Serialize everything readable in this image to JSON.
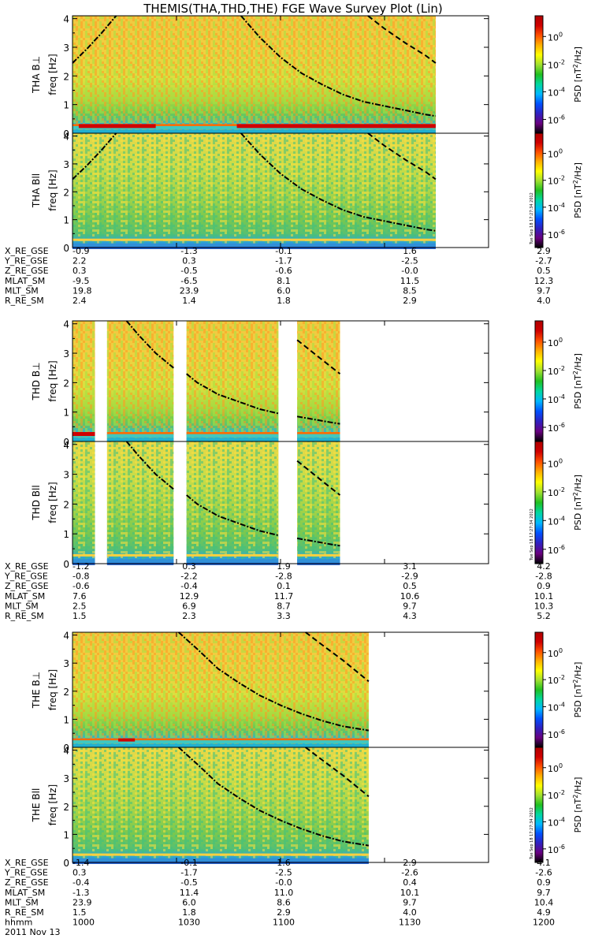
{
  "chart_data": {
    "type": "heatmap",
    "title": "THEMIS(THA,THD,THE) FGE Wave Survey Plot (Lin)",
    "stamp": "Tue Sep 18 17:27:34 2012",
    "freq_ticks": [
      0,
      1,
      2,
      3,
      4
    ],
    "ylim": [
      0,
      4.1
    ],
    "colorbar": {
      "label_parts": [
        "PSD [nT",
        "2",
        "/Hz]"
      ],
      "ticks": [
        {
          "base": "10",
          "exp": "0",
          "value": 0
        },
        {
          "base": "10",
          "exp": "-2",
          "value": -2
        },
        {
          "base": "10",
          "exp": "-4",
          "value": -4
        },
        {
          "base": "10",
          "exp": "-6",
          "value": -6
        }
      ],
      "log_range": [
        -7,
        1.5
      ],
      "colors": [
        "#000000",
        "#6a0080",
        "#3020c0",
        "#0050ff",
        "#00b8ff",
        "#00d8a0",
        "#20c020",
        "#a0e030",
        "#ffff00",
        "#ffb000",
        "#ff5000",
        "#d00000",
        "#b00000"
      ]
    },
    "ephem_labels": [
      "X_RE_GSE",
      "Y_RE_GSE",
      "Z_RE_GSE",
      "MLAT_SM",
      "MLT_SM",
      "R_RE_SM"
    ],
    "time_axis": {
      "label": "hhmm",
      "ticks": [
        "1000",
        "1030",
        "1100",
        "1130",
        "1200"
      ],
      "date": "2011 Nov 13"
    },
    "panels": [
      {
        "probe": "THA",
        "ylabel_prefix": "THA B",
        "ylabel_sym": "⊥",
        "ylabel2": "freq [Hz]",
        "component": "perp",
        "coverage": [
          [
            0,
            0.873
          ]
        ],
        "stamp": false
      },
      {
        "probe": "THA",
        "ylabel_prefix": "THA B",
        "ylabel_sym": "ll",
        "ylabel2": "freq [Hz]",
        "component": "par",
        "coverage": [
          [
            0,
            0.873
          ]
        ],
        "stamp": true
      },
      {
        "probe": "THD",
        "ylabel_prefix": "THD B",
        "ylabel_sym": "⊥",
        "ylabel2": "freq [Hz]",
        "component": "perp",
        "coverage": [
          [
            0,
            0.054
          ],
          [
            0.083,
            0.243
          ],
          [
            0.274,
            0.495
          ],
          [
            0.54,
            0.643
          ]
        ],
        "stamp": false
      },
      {
        "probe": "THD",
        "ylabel_prefix": "THD B",
        "ylabel_sym": "ll",
        "ylabel2": "freq [Hz]",
        "component": "par",
        "coverage": [
          [
            0,
            0.054
          ],
          [
            0.083,
            0.243
          ],
          [
            0.274,
            0.495
          ],
          [
            0.54,
            0.643
          ]
        ],
        "stamp": true
      },
      {
        "probe": "THE",
        "ylabel_prefix": "THE B",
        "ylabel_sym": "⊥",
        "ylabel2": "freq [Hz]",
        "component": "perp",
        "coverage": [
          [
            0,
            0.712
          ]
        ],
        "stamp": false
      },
      {
        "probe": "THE",
        "ylabel_prefix": "THE B",
        "ylabel_sym": "ll",
        "ylabel2": "freq [Hz]",
        "component": "par",
        "coverage": [
          [
            0,
            0.712
          ]
        ],
        "stamp": true
      }
    ],
    "ephemeris": [
      {
        "probe": "THA",
        "rows": [
          [
            "-0.9",
            "-1.3",
            "-0.1",
            "1.6",
            "2.9"
          ],
          [
            "2.2",
            "0.3",
            "-1.7",
            "-2.5",
            "-2.7"
          ],
          [
            "0.3",
            "-0.5",
            "-0.6",
            "-0.0",
            "0.5"
          ],
          [
            "-9.5",
            "-6.5",
            "8.1",
            "11.5",
            "12.3"
          ],
          [
            "19.8",
            "23.9",
            "6.0",
            "8.5",
            "9.7"
          ],
          [
            "2.4",
            "1.4",
            "1.8",
            "2.9",
            "4.0"
          ]
        ]
      },
      {
        "probe": "THD",
        "rows": [
          [
            "-1.2",
            "0.3",
            "1.9",
            "3.1",
            "4.2"
          ],
          [
            "-0.8",
            "-2.2",
            "-2.8",
            "-2.9",
            "-2.8"
          ],
          [
            "-0.6",
            "-0.4",
            "0.1",
            "0.5",
            "0.9"
          ],
          [
            "7.6",
            "12.9",
            "11.7",
            "10.6",
            "10.1"
          ],
          [
            "2.5",
            "6.9",
            "8.7",
            "9.7",
            "10.3"
          ],
          [
            "1.5",
            "2.3",
            "3.3",
            "4.3",
            "5.2"
          ]
        ]
      },
      {
        "probe": "THE",
        "rows": [
          [
            "-1.4",
            "-0.1",
            "1.6",
            "2.9",
            "4.1"
          ],
          [
            "0.3",
            "-1.7",
            "-2.5",
            "-2.6",
            "-2.6"
          ],
          [
            "-0.4",
            "-0.5",
            "-0.0",
            "0.4",
            "0.9"
          ],
          [
            "-1.3",
            "11.4",
            "11.0",
            "10.1",
            "9.7"
          ],
          [
            "23.9",
            "6.0",
            "8.6",
            "9.7",
            "10.4"
          ],
          [
            "1.5",
            "1.8",
            "2.9",
            "4.0",
            "4.9"
          ]
        ]
      }
    ],
    "overlays": {
      "THA": [
        {
          "style": "dashdot",
          "points": [
            [
              0,
              2.45
            ],
            [
              0.035,
              2.95
            ],
            [
              0.07,
              3.5
            ],
            [
              0.105,
              4.1
            ]
          ]
        },
        {
          "style": "dashdot",
          "points": [
            [
              0.405,
              4.1
            ],
            [
              0.45,
              3.35
            ],
            [
              0.5,
              2.65
            ],
            [
              0.55,
              2.1
            ],
            [
              0.6,
              1.7
            ],
            [
              0.65,
              1.35
            ],
            [
              0.7,
              1.1
            ],
            [
              0.75,
              0.95
            ],
            [
              0.8,
              0.8
            ],
            [
              0.85,
              0.65
            ],
            [
              0.873,
              0.6
            ]
          ]
        },
        {
          "style": "dash",
          "points": [
            [
              0.71,
              4.1
            ],
            [
              0.75,
              3.65
            ],
            [
              0.8,
              3.15
            ],
            [
              0.85,
              2.7
            ],
            [
              0.873,
              2.45
            ]
          ]
        }
      ],
      "THD": [
        {
          "style": "dashdot",
          "points": [
            [
              0.13,
              4.1
            ],
            [
              0.16,
              3.6
            ],
            [
              0.2,
              3.0
            ],
            [
              0.243,
              2.5
            ]
          ]
        },
        {
          "style": "dashdot",
          "points": [
            [
              0.274,
              2.3
            ],
            [
              0.3,
              2.0
            ],
            [
              0.35,
              1.6
            ],
            [
              0.4,
              1.35
            ],
            [
              0.45,
              1.1
            ],
            [
              0.495,
              0.95
            ]
          ]
        },
        {
          "style": "dashdot",
          "points": [
            [
              0.54,
              0.85
            ],
            [
              0.58,
              0.75
            ],
            [
              0.62,
              0.65
            ],
            [
              0.643,
              0.6
            ]
          ]
        },
        {
          "style": "dash",
          "points": [
            [
              0.54,
              3.45
            ],
            [
              0.58,
              3.0
            ],
            [
              0.62,
              2.55
            ],
            [
              0.643,
              2.3
            ]
          ]
        }
      ],
      "THE": [
        {
          "style": "dashdot",
          "points": [
            [
              0.255,
              4.1
            ],
            [
              0.3,
              3.5
            ],
            [
              0.35,
              2.8
            ],
            [
              0.4,
              2.3
            ],
            [
              0.45,
              1.85
            ],
            [
              0.5,
              1.5
            ],
            [
              0.55,
              1.2
            ],
            [
              0.6,
              0.95
            ],
            [
              0.65,
              0.75
            ],
            [
              0.712,
              0.6
            ]
          ]
        },
        {
          "style": "dash",
          "points": [
            [
              0.56,
              4.1
            ],
            [
              0.6,
              3.65
            ],
            [
              0.65,
              3.1
            ],
            [
              0.712,
              2.35
            ]
          ]
        }
      ]
    }
  }
}
